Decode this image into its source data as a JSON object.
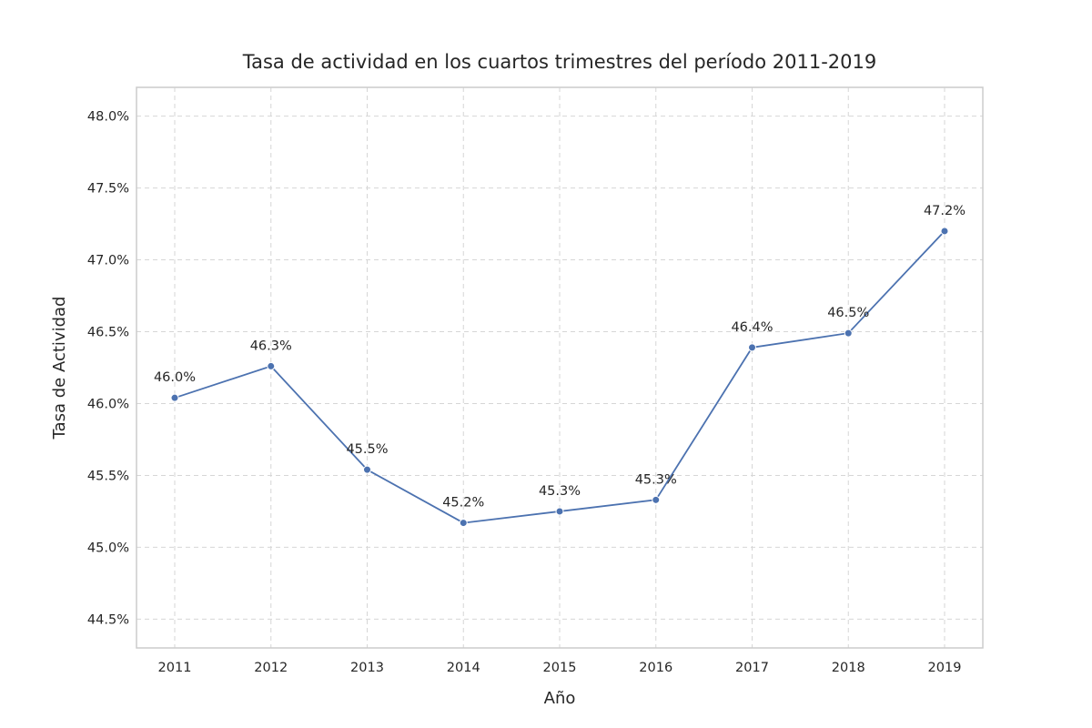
{
  "chart_data": {
    "type": "line",
    "title": "Tasa de actividad en los cuartos trimestres del período 2011-2019",
    "xlabel": "Año",
    "ylabel": "Tasa de Actividad",
    "categories": [
      "2011",
      "2012",
      "2013",
      "2014",
      "2015",
      "2016",
      "2017",
      "2018",
      "2019"
    ],
    "series": [
      {
        "values": [
          46.04,
          46.26,
          45.54,
          45.17,
          45.25,
          45.33,
          46.39,
          46.49,
          47.2
        ],
        "data_labels": [
          "46.0%",
          "46.3%",
          "45.5%",
          "45.2%",
          "45.3%",
          "45.3%",
          "46.4%",
          "46.5%",
          "47.2%"
        ],
        "color": "#4c72b0"
      }
    ],
    "ylim": [
      44.3,
      48.2
    ],
    "y_ticks": [
      44.5,
      45.0,
      45.5,
      46.0,
      46.5,
      47.0,
      47.5,
      48.0
    ],
    "y_tick_labels": [
      "44.5%",
      "45.0%",
      "45.5%",
      "46.0%",
      "46.5%",
      "47.0%",
      "47.5%",
      "48.0%"
    ],
    "grid": true,
    "grid_style": "dashed",
    "legend": "none",
    "markers": true
  }
}
